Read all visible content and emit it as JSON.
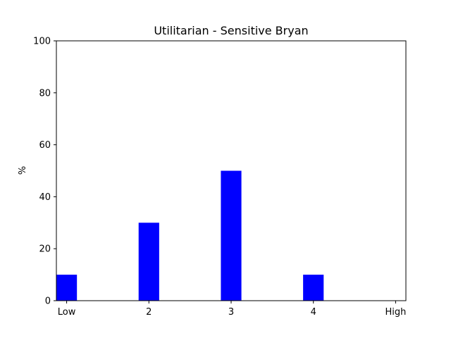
{
  "chart_data": {
    "type": "bar",
    "title": "Utilitarian - Sensitive Bryan",
    "xlabel": "",
    "ylabel": "%",
    "categories": [
      "Low",
      "2",
      "3",
      "4",
      "High"
    ],
    "values": [
      10,
      30,
      50,
      10,
      0
    ],
    "ylim": [
      0,
      100
    ],
    "yticks": [
      0,
      20,
      40,
      60,
      80,
      100
    ],
    "bar_color": "#0000ff",
    "grid": false,
    "legend": "none"
  }
}
